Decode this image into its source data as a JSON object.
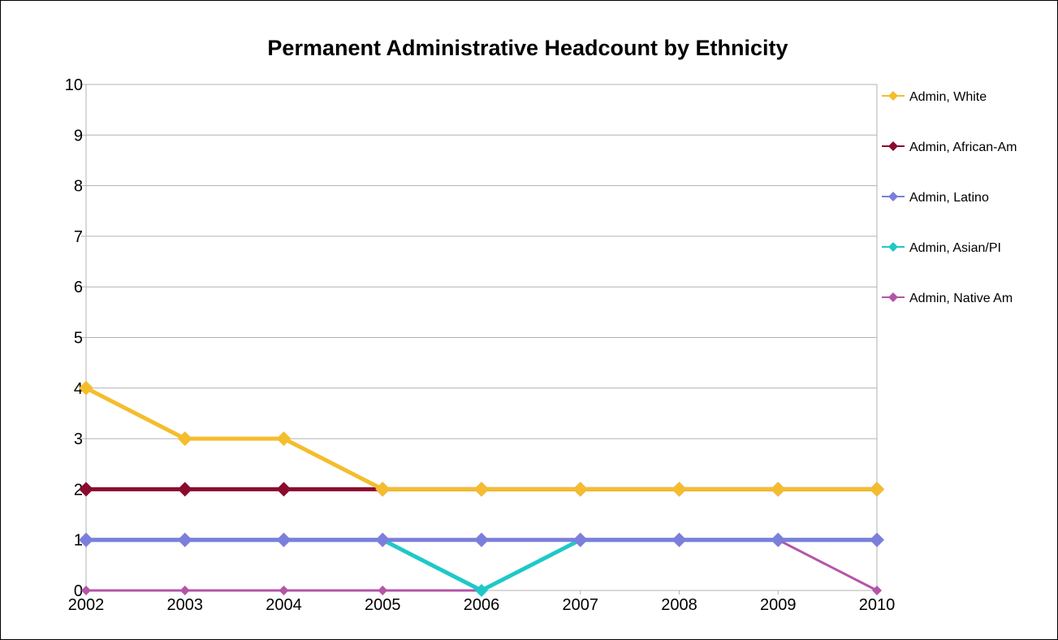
{
  "chart_data": {
    "type": "line",
    "title": "Permanent Administrative Headcount by Ethnicity",
    "xlabel": "",
    "ylabel": "",
    "categories": [
      "2002",
      "2003",
      "2004",
      "2005",
      "2006",
      "2007",
      "2008",
      "2009",
      "2010"
    ],
    "y_ticks": [
      "0",
      "1",
      "2",
      "3",
      "4",
      "5",
      "6",
      "7",
      "8",
      "9",
      "10"
    ],
    "ylim": [
      0,
      10
    ],
    "grid": "horizontal",
    "legend_position": "right",
    "series": [
      {
        "name": "Admin, White",
        "color": "#F5BD2D",
        "values": [
          4,
          3,
          3,
          2,
          2,
          2,
          2,
          2,
          2
        ]
      },
      {
        "name": "Admin, African-Am",
        "color": "#8B0A2E",
        "values": [
          2,
          2,
          2,
          2,
          2,
          2,
          2,
          2,
          2
        ]
      },
      {
        "name": "Admin, Latino",
        "color": "#7B7FDB",
        "values": [
          1,
          1,
          1,
          1,
          1,
          1,
          1,
          1,
          1
        ]
      },
      {
        "name": "Admin, Asian/PI",
        "color": "#1FC8C8",
        "values": [
          1,
          1,
          1,
          1,
          0,
          1,
          1,
          1,
          1
        ]
      },
      {
        "name": "Admin, Native Am",
        "color": "#B455A8",
        "values": [
          0,
          0,
          0,
          0,
          0,
          1,
          1,
          1,
          0
        ]
      }
    ]
  }
}
